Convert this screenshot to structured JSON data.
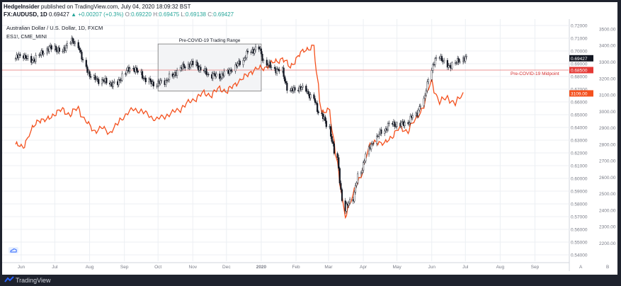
{
  "header": {
    "publisher": "HedgeInsider",
    "published_text": "published on TradingView.com, July 04, 2020 18:09:32 BST",
    "symbol": "FX:AUDUSD, 1D",
    "last_price": "0.69427",
    "change_arrow": "▲",
    "change": "+0.00207 (+0.3%)",
    "o_label": "O:",
    "o_value": "0.69220",
    "h_label": "H:",
    "h_value": "0.69475",
    "l_label": "L:",
    "l_value": "0.69138",
    "c_label": "C:",
    "c_value": "0.69427"
  },
  "footer": {
    "brand": "TradingView",
    "logo_icon": "tradingview-logo-icon"
  },
  "colors": {
    "candle": "#131722",
    "es_line": "#f4511e",
    "midpoint_line": "#e57373",
    "midpoint_label": "#d32f2f",
    "box_fill": "#f3f4f6",
    "box_border": "#777777",
    "grid": "#eceff3",
    "price_tag_bg": "#131722",
    "es_tag_bg": "#f4511e",
    "midpoint_tag_bg": "#e53935"
  },
  "chart_data": {
    "type": "line",
    "title": "Australian Dollar / U.S. Dollar, 1D, FXCM",
    "series": [
      {
        "name": "Australian Dollar / U.S. Dollar, 1D, FXCM",
        "kind": "candlestick",
        "axis": "left",
        "x": [
          "2019-05-27",
          "2019-06-03",
          "2019-06-10",
          "2019-06-17",
          "2019-06-24",
          "2019-07-01",
          "2019-07-08",
          "2019-07-15",
          "2019-07-22",
          "2019-07-29",
          "2019-08-05",
          "2019-08-12",
          "2019-08-19",
          "2019-08-26",
          "2019-09-02",
          "2019-09-09",
          "2019-09-16",
          "2019-09-23",
          "2019-09-30",
          "2019-10-07",
          "2019-10-14",
          "2019-10-21",
          "2019-10-28",
          "2019-11-04",
          "2019-11-11",
          "2019-11-18",
          "2019-11-25",
          "2019-12-02",
          "2019-12-09",
          "2019-12-16",
          "2019-12-23",
          "2019-12-30",
          "2020-01-06",
          "2020-01-13",
          "2020-01-20",
          "2020-01-27",
          "2020-02-03",
          "2020-02-10",
          "2020-02-17",
          "2020-02-24",
          "2020-03-02",
          "2020-03-09",
          "2020-03-16",
          "2020-03-23",
          "2020-03-30",
          "2020-04-06",
          "2020-04-13",
          "2020-04-20",
          "2020-04-27",
          "2020-05-04",
          "2020-05-11",
          "2020-05-18",
          "2020-05-25",
          "2020-06-01",
          "2020-06-08",
          "2020-06-15",
          "2020-06-22",
          "2020-06-29"
        ],
        "close": [
          0.694,
          0.697,
          0.692,
          0.696,
          0.701,
          0.703,
          0.699,
          0.708,
          0.705,
          0.687,
          0.678,
          0.677,
          0.675,
          0.674,
          0.683,
          0.687,
          0.682,
          0.676,
          0.674,
          0.676,
          0.68,
          0.686,
          0.689,
          0.69,
          0.684,
          0.681,
          0.68,
          0.683,
          0.687,
          0.693,
          0.7,
          0.702,
          0.69,
          0.686,
          0.684,
          0.668,
          0.671,
          0.67,
          0.662,
          0.65,
          0.64,
          0.615,
          0.575,
          0.585,
          0.605,
          0.622,
          0.632,
          0.638,
          0.643,
          0.642,
          0.644,
          0.65,
          0.66,
          0.685,
          0.697,
          0.688,
          0.69,
          0.694
        ]
      },
      {
        "name": "ES1!, CME_MINI",
        "kind": "line",
        "axis": "right",
        "x": [
          "2019-05-27",
          "2019-06-03",
          "2019-06-10",
          "2019-06-17",
          "2019-06-24",
          "2019-07-01",
          "2019-07-08",
          "2019-07-15",
          "2019-07-22",
          "2019-07-29",
          "2019-08-05",
          "2019-08-12",
          "2019-08-19",
          "2019-08-26",
          "2019-09-02",
          "2019-09-09",
          "2019-09-16",
          "2019-09-23",
          "2019-09-30",
          "2019-10-07",
          "2019-10-14",
          "2019-10-21",
          "2019-10-28",
          "2019-11-04",
          "2019-11-11",
          "2019-11-18",
          "2019-11-25",
          "2019-12-02",
          "2019-12-09",
          "2019-12-16",
          "2019-12-23",
          "2019-12-30",
          "2020-01-06",
          "2020-01-13",
          "2020-01-20",
          "2020-01-27",
          "2020-02-03",
          "2020-02-10",
          "2020-02-17",
          "2020-02-24",
          "2020-03-02",
          "2020-03-09",
          "2020-03-16",
          "2020-03-23",
          "2020-03-30",
          "2020-04-06",
          "2020-04-13",
          "2020-04-20",
          "2020-04-27",
          "2020-05-04",
          "2020-05-11",
          "2020-05-18",
          "2020-05-25",
          "2020-06-01",
          "2020-06-08",
          "2020-06-15",
          "2020-06-22",
          "2020-06-29"
        ],
        "values": [
          2800,
          2780,
          2880,
          2950,
          2945,
          2985,
          3010,
          2980,
          3020,
          2940,
          2880,
          2900,
          2870,
          2920,
          2980,
          3010,
          3005,
          2975,
          2950,
          2970,
          2990,
          3015,
          3050,
          3080,
          3110,
          3100,
          3140,
          3120,
          3165,
          3200,
          3240,
          3260,
          3270,
          3300,
          3320,
          3270,
          3330,
          3380,
          3390,
          3000,
          3000,
          2700,
          2350,
          2500,
          2600,
          2780,
          2820,
          2800,
          2850,
          2900,
          2880,
          2950,
          3030,
          3190,
          3050,
          3090,
          3040,
          3115
        ]
      }
    ],
    "left_axis": {
      "min": 0.535,
      "max": 0.725,
      "ticks": [
        "0.72000",
        "0.71000",
        "0.70000",
        "0.69000",
        "0.68000",
        "0.67000",
        "0.66000",
        "0.65000",
        "0.64000",
        "0.63000",
        "0.62000",
        "0.61000",
        "0.60000",
        "0.59000",
        "0.58000",
        "0.57000",
        "0.56000",
        "0.55000",
        "0.54000"
      ]
    },
    "right_axis": {
      "min": 2090,
      "max": 3560,
      "ticks": [
        "3500.00",
        "3400.00",
        "3300.00",
        "3200.00",
        "3100.00",
        "3000.00",
        "2900.00",
        "2800.00",
        "2700.00",
        "2600.00",
        "2500.00",
        "2400.00",
        "2300.00",
        "2200.00"
      ]
    },
    "x_axis": {
      "ticks": [
        {
          "label": "Jun",
          "x": "2019-06-01"
        },
        {
          "label": "Jul",
          "x": "2019-07-01"
        },
        {
          "label": "Aug",
          "x": "2019-08-01"
        },
        {
          "label": "Sep",
          "x": "2019-09-01"
        },
        {
          "label": "Oct",
          "x": "2019-10-01"
        },
        {
          "label": "Nov",
          "x": "2019-11-01"
        },
        {
          "label": "Dec",
          "x": "2019-12-01"
        },
        {
          "label": "2020",
          "x": "2020-01-01"
        },
        {
          "label": "Feb",
          "x": "2020-02-01"
        },
        {
          "label": "Mar",
          "x": "2020-03-01"
        },
        {
          "label": "Apr",
          "x": "2020-04-01"
        },
        {
          "label": "May",
          "x": "2020-05-01"
        },
        {
          "label": "Jun",
          "x": "2020-06-01"
        },
        {
          "label": "Jul",
          "x": "2020-07-01"
        },
        {
          "label": "Aug",
          "x": "2020-08-01"
        },
        {
          "label": "Sep",
          "x": "2020-09-01"
        }
      ]
    },
    "annotations": {
      "range_box": {
        "label": "Pre-COVID-19 Trading Range",
        "x_start": "2019-10-01",
        "x_end": "2020-01-01",
        "y_low": 0.6685,
        "y_high": 0.7055
      },
      "midpoint": {
        "label": "Pre-COVID-19 Midpoint",
        "value": 0.685,
        "tag": "0.68500"
      },
      "price_tag": {
        "value": 0.69427,
        "label": "0.69427"
      },
      "es_tag": {
        "value": 3109,
        "label": "3109.00"
      }
    },
    "grid": true,
    "corner_labels": {
      "auto": "A",
      "log": "B"
    }
  }
}
